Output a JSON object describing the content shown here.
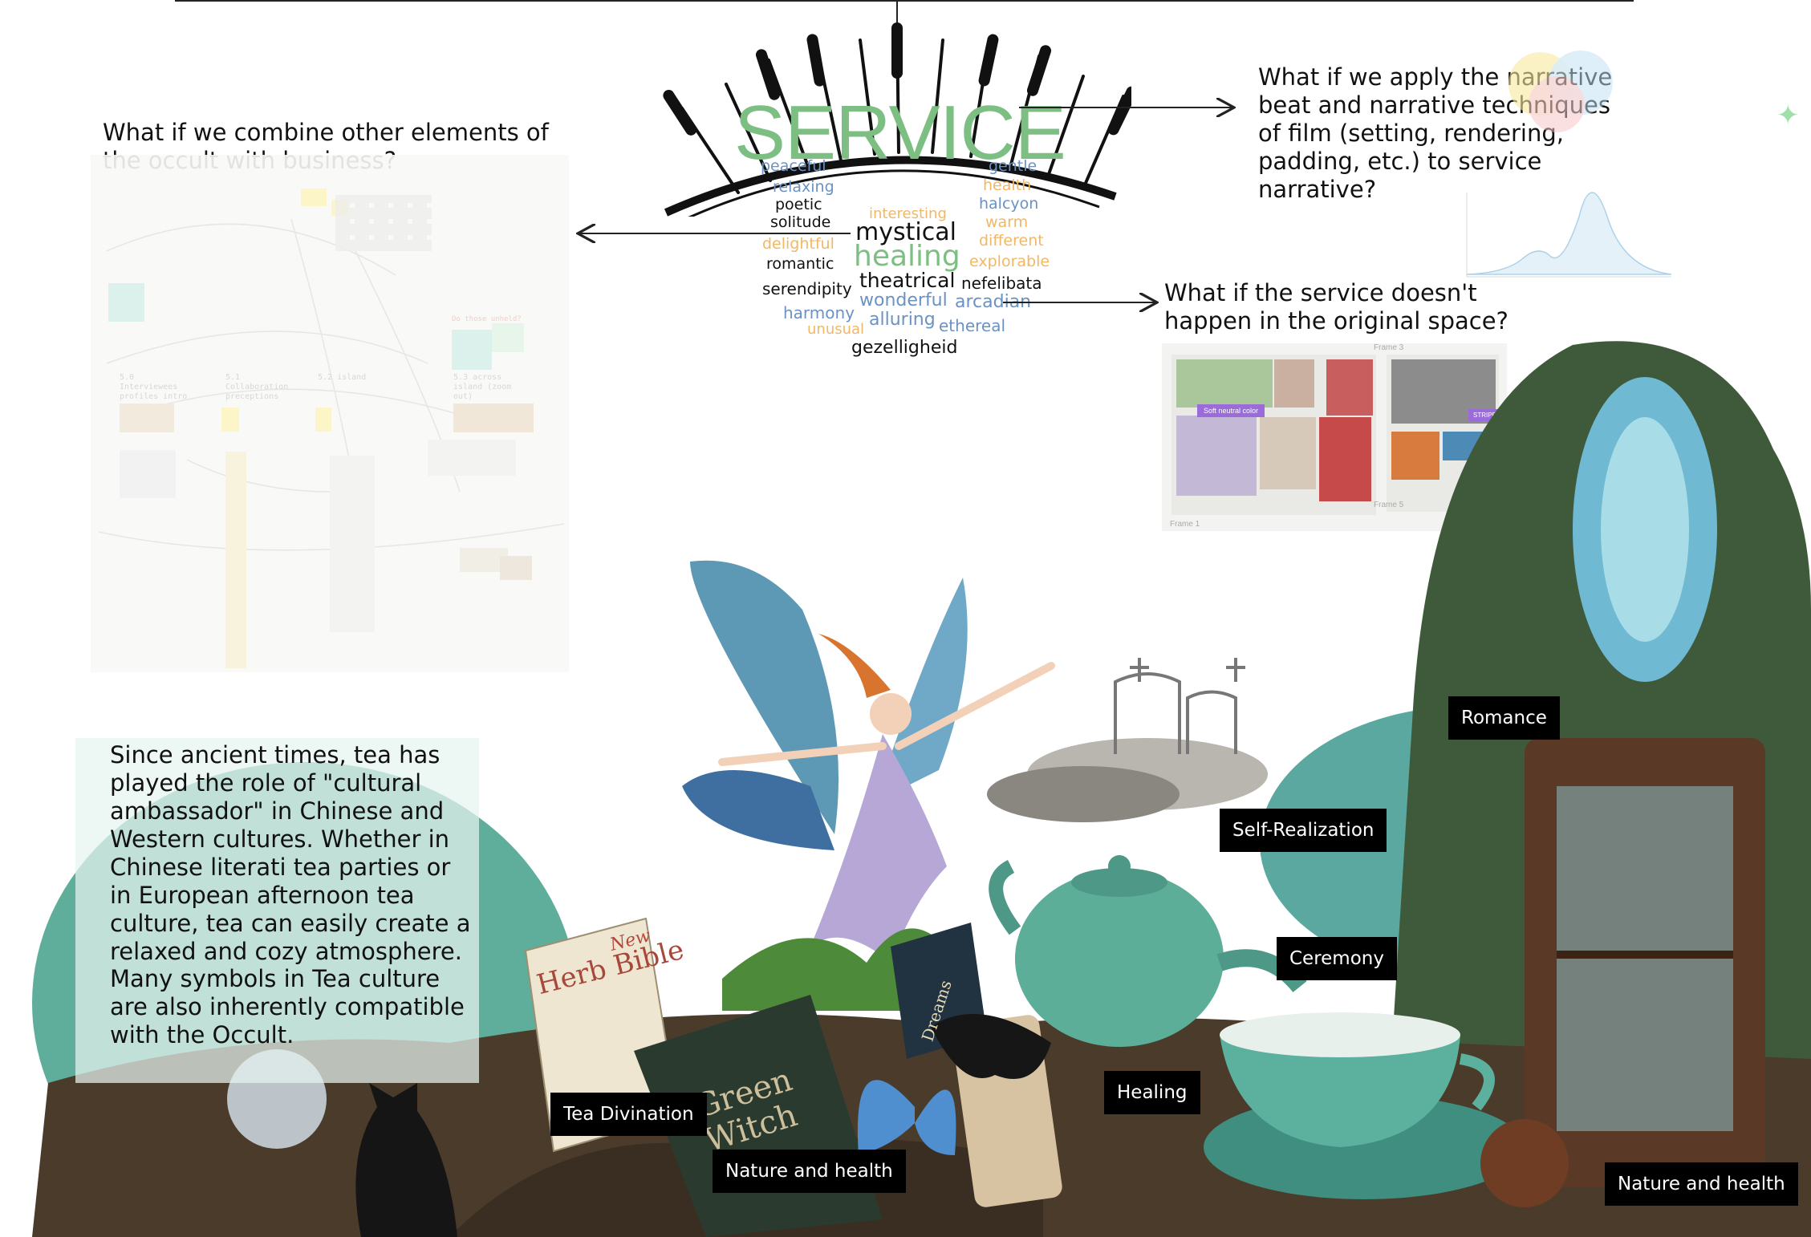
{
  "colors": {
    "service_green": "#7dbf83",
    "word_blue": "#6a92c4",
    "word_orange": "#f2b765",
    "label_bg": "#000000",
    "teal": "#4f9e8c"
  },
  "central_word": "SERVICE",
  "word_cloud": [
    {
      "text": "peaceful",
      "tone": "blue"
    },
    {
      "text": "gentle",
      "tone": "blue"
    },
    {
      "text": "relaxing",
      "tone": "blue"
    },
    {
      "text": "health",
      "tone": "orange"
    },
    {
      "text": "poetic",
      "tone": "dark"
    },
    {
      "text": "halcyon",
      "tone": "blue"
    },
    {
      "text": "interesting",
      "tone": "orange"
    },
    {
      "text": "solitude",
      "tone": "dark"
    },
    {
      "text": "warm",
      "tone": "orange"
    },
    {
      "text": "mystical",
      "tone": "dark"
    },
    {
      "text": "different",
      "tone": "orange"
    },
    {
      "text": "delightful",
      "tone": "orange"
    },
    {
      "text": "healing",
      "tone": "green"
    },
    {
      "text": "explorable",
      "tone": "orange"
    },
    {
      "text": "romantic",
      "tone": "dark"
    },
    {
      "text": "theatrical",
      "tone": "dark"
    },
    {
      "text": "nefelibata",
      "tone": "dark"
    },
    {
      "text": "serendipity",
      "tone": "dark"
    },
    {
      "text": "wonderful",
      "tone": "blue"
    },
    {
      "text": "arcadian",
      "tone": "blue"
    },
    {
      "text": "harmony",
      "tone": "blue"
    },
    {
      "text": "alluring",
      "tone": "blue"
    },
    {
      "text": "ethereal",
      "tone": "blue"
    },
    {
      "text": "unusual",
      "tone": "orange"
    },
    {
      "text": "gezelligheid",
      "tone": "dark"
    }
  ],
  "questions": {
    "occult_business": "What if we combine other elements of the occult with business?",
    "film_narrative": "What if we apply the narrative beat and narrative techniques of film (setting, rendering, padding, etc.) to service narrative?",
    "original_space": "What if the service doesn't happen in the original space?"
  },
  "board_left": {
    "section_labels": [
      "5.0 Interviewees profiles intro",
      "5.1 Collaboration preceptions",
      "5.2 island",
      "5.3 across island (zoom out)"
    ],
    "note_text": "Do those unheld?"
  },
  "board_right": {
    "frame_labels": [
      "Frame 3",
      "Frame 1",
      "Frame 5"
    ],
    "tags": [
      "Soft neutral color",
      "STRIPES"
    ]
  },
  "tea_paragraph": [
    "Since ancient times, tea has played the role of \"cultural ambassador\" in Chinese and Western cultures. Whether in Chinese literati tea parties or in European afternoon tea culture, tea can easily create a relaxed and cozy atmosphere.",
    "Many symbols in Tea culture are also inherently compatible with the Occult."
  ],
  "book_titles": {
    "herb_bible_new": "New",
    "herb_bible": "Herb Bible",
    "dreams": "Dreams",
    "green_witch": "Green Witch"
  },
  "collage_labels": [
    "Romance",
    "Self-Realization",
    "Ceremony",
    "Healing",
    "Tea Divination",
    "Nature and health",
    "Nature and health"
  ]
}
